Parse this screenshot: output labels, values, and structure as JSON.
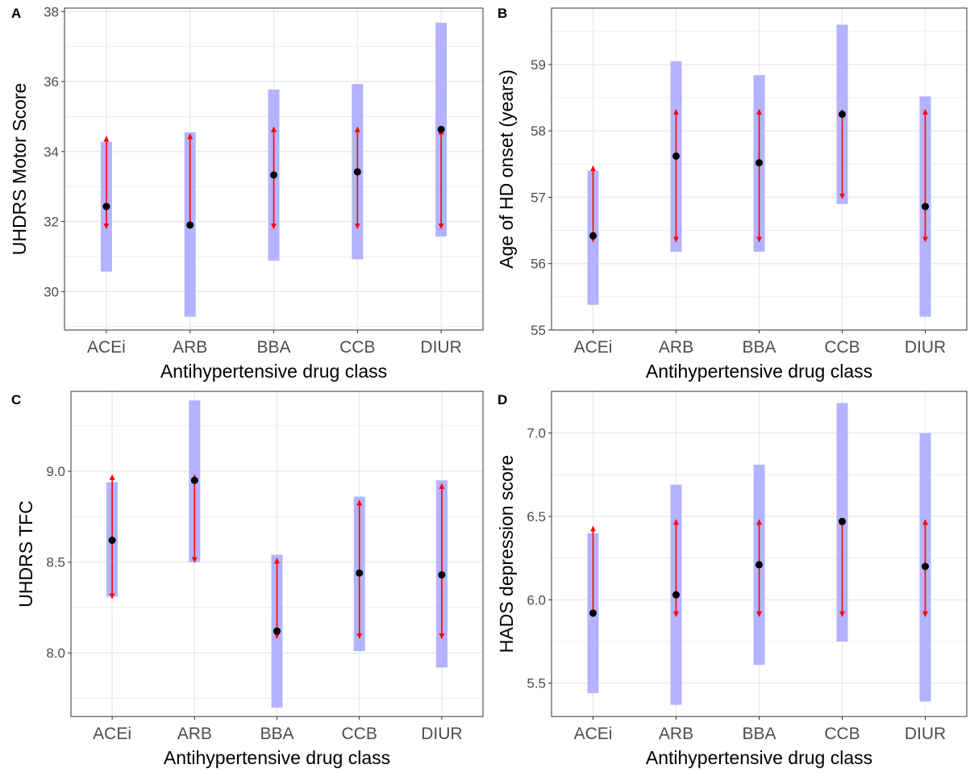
{
  "figure": {
    "style": {
      "ci_fill": "#b3b3ff",
      "arrow_color": "#ff0000",
      "point_color": "#000000",
      "grid_color": "#ebebeb",
      "panel_border": "#333333",
      "axis_text_color": "#4d4d4d"
    }
  },
  "chart_data": [
    {
      "panel_label": "A",
      "type": "scatter",
      "xlabel": "Antihypertensive drug class",
      "ylabel": "UHDRS Motor Score",
      "categories": [
        "ACEi",
        "ARB",
        "BBA",
        "CCB",
        "DIUR"
      ],
      "ylim": [
        28.9,
        38.1
      ],
      "yticks": [
        30,
        32,
        34,
        36,
        38
      ],
      "ytick_labels": [
        "30",
        "32",
        "34",
        "36",
        "38"
      ],
      "grid": true,
      "point_estimates": [
        32.43,
        31.9,
        33.33,
        33.42,
        34.63
      ],
      "ci_bars": [
        [
          30.57,
          34.28
        ],
        [
          29.28,
          34.55
        ],
        [
          30.88,
          35.77
        ],
        [
          30.92,
          35.93
        ],
        [
          31.57,
          37.68
        ]
      ],
      "arrow_ranges": [
        [
          31.8,
          34.43
        ],
        [
          31.8,
          34.5
        ],
        [
          31.8,
          34.7
        ],
        [
          31.8,
          34.7
        ],
        [
          31.8,
          34.63
        ]
      ]
    },
    {
      "panel_label": "B",
      "type": "scatter",
      "xlabel": "Antihypertensive drug class",
      "ylabel": "Age of HD onset (years)",
      "categories": [
        "ACEi",
        "ARB",
        "BBA",
        "CCB",
        "DIUR"
      ],
      "ylim": [
        55.0,
        59.85
      ],
      "yticks": [
        55,
        56,
        57,
        58,
        59
      ],
      "ytick_labels": [
        "55",
        "56",
        "57",
        "58",
        "59"
      ],
      "grid": true,
      "point_estimates": [
        56.42,
        57.62,
        57.52,
        58.25,
        56.86
      ],
      "ci_bars": [
        [
          55.38,
          57.4
        ],
        [
          56.18,
          59.05
        ],
        [
          56.18,
          58.84
        ],
        [
          56.9,
          59.6
        ],
        [
          55.2,
          58.52
        ]
      ],
      "arrow_ranges": [
        [
          56.33,
          57.47
        ],
        [
          56.33,
          58.32
        ],
        [
          56.33,
          58.32
        ],
        [
          56.98,
          58.32
        ],
        [
          56.33,
          58.32
        ]
      ]
    },
    {
      "panel_label": "C",
      "type": "scatter",
      "xlabel": "Antihypertensive drug class",
      "ylabel": "UHDRS TFC",
      "categories": [
        "ACEi",
        "ARB",
        "BBA",
        "CCB",
        "DIUR"
      ],
      "ylim": [
        7.65,
        9.44
      ],
      "yticks": [
        8.0,
        8.5,
        9.0
      ],
      "ytick_labels": [
        "8.0",
        "8.5",
        "9.0"
      ],
      "grid": true,
      "point_estimates": [
        8.62,
        8.95,
        8.12,
        8.44,
        8.43
      ],
      "ci_bars": [
        [
          8.31,
          8.94
        ],
        [
          8.5,
          9.39
        ],
        [
          7.7,
          8.54
        ],
        [
          8.01,
          8.86
        ],
        [
          7.92,
          8.95
        ]
      ],
      "arrow_ranges": [
        [
          8.3,
          8.98
        ],
        [
          8.5,
          8.98
        ],
        [
          8.08,
          8.52
        ],
        [
          8.08,
          8.84
        ],
        [
          8.08,
          8.93
        ]
      ]
    },
    {
      "panel_label": "D",
      "type": "scatter",
      "xlabel": "Antihypertensive drug class",
      "ylabel": "HADS depression score",
      "categories": [
        "ACEi",
        "ARB",
        "BBA",
        "CCB",
        "DIUR"
      ],
      "ylim": [
        5.3,
        7.25
      ],
      "yticks": [
        5.5,
        6.0,
        6.5,
        7.0
      ],
      "ytick_labels": [
        "5.5",
        "6.0",
        "6.5",
        "7.0"
      ],
      "grid": true,
      "point_estimates": [
        5.92,
        6.03,
        6.21,
        6.47,
        6.2
      ],
      "ci_bars": [
        [
          5.44,
          6.4
        ],
        [
          5.37,
          6.69
        ],
        [
          5.61,
          6.81
        ],
        [
          5.75,
          7.18
        ],
        [
          5.39,
          7.0
        ]
      ],
      "arrow_ranges": [
        [
          5.9,
          6.44
        ],
        [
          5.9,
          6.48
        ],
        [
          5.9,
          6.48
        ],
        [
          5.9,
          6.48
        ],
        [
          5.9,
          6.48
        ]
      ]
    }
  ]
}
